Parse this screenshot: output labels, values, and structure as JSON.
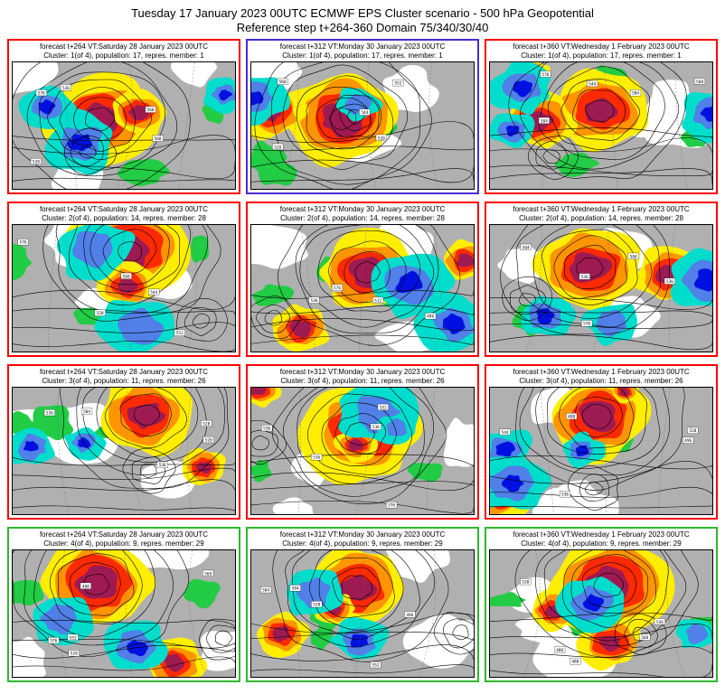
{
  "title": "Tuesday 17 January 2023 00UTC ECMWF EPS Cluster scenario - 500 hPa Geopotential",
  "subtitle": "Reference step t+264-360 Domain 75/340/30/40",
  "base_time": "Tuesday 17 January 2023 00UTC",
  "parameter": "500 hPa Geopotential",
  "reference_step": "t+264-360",
  "domain": "75/340/30/40",
  "colors": {
    "red_border": "#ff0000",
    "blue_border": "#4b2bd6",
    "green_border": "#2eb82e",
    "palette": {
      "gray": "#b0b0b0",
      "yellow": "#ffee00",
      "orange": "#ff9500",
      "red": "#ff2a00",
      "dark_red": "#9e1a52",
      "cyan": "#00ddcc",
      "blue": "#5080e8",
      "dark_blue": "#0010e0",
      "green": "#22cc44",
      "contour": "#000000"
    }
  },
  "panels": [
    {
      "id": "r1c1",
      "line1": "forecast t+264 VT:Saturday 28 January 2023 00UTC",
      "line2": "Cluster: 1(of 4), population: 17, repres. member: 1",
      "border": "red",
      "seed": 7
    },
    {
      "id": "r1c2",
      "line1": "forecast t+312 VT:Monday 30 January 2023 00UTC",
      "line2": "Cluster: 1(of 4), population: 17, repres. member: 1",
      "border": "blue",
      "seed": 23
    },
    {
      "id": "r1c3",
      "line1": "forecast t+360 VT:Wednesday 1 February 2023 00UTC",
      "line2": "Cluster: 1(of 4), population: 17, repres. member: 1",
      "border": "red",
      "seed": 41
    },
    {
      "id": "r2c1",
      "line1": "forecast t+264 VT:Saturday 28 January 2023 00UTC",
      "line2": "Cluster: 2(of 4), population: 14, repres. member: 28",
      "border": "red",
      "seed": 59
    },
    {
      "id": "r2c2",
      "line1": "forecast t+312 VT:Monday 30 January 2023 00UTC",
      "line2": "Cluster: 2(of 4), population: 14, repres. member: 28",
      "border": "red",
      "seed": 73
    },
    {
      "id": "r2c3",
      "line1": "forecast t+360 VT:Wednesday 1 February 2023 00UTC",
      "line2": "Cluster: 2(of 4), population: 14, repres. member: 28",
      "border": "red",
      "seed": 97
    },
    {
      "id": "r3c1",
      "line1": "forecast t+264 VT:Saturday 28 January 2023 00UTC",
      "line2": "Cluster: 3(of 4), population: 11, repres. member: 26",
      "border": "red",
      "seed": 113
    },
    {
      "id": "r3c2",
      "line1": "forecast t+312 VT:Monday 30 January 2023 00UTC",
      "line2": "Cluster: 3(of 4), population: 11, repres. member: 26",
      "border": "red",
      "seed": 131
    },
    {
      "id": "r3c3",
      "line1": "forecast t+360 VT:Wednesday 1 February 2023 00UTC",
      "line2": "Cluster: 3(of 4), population: 11, repres. member: 26",
      "border": "red",
      "seed": 151
    },
    {
      "id": "r4c1",
      "line1": "forecast t+264 VT:Saturday 28 January 2023 00UTC",
      "line2": "Cluster: 4(of 4), population: 9, repres. member: 29",
      "border": "green",
      "seed": 173
    },
    {
      "id": "r4c2",
      "line1": "forecast t+312 VT:Monday 30 January 2023 00UTC",
      "line2": "Cluster: 4(of 4), population: 9, repres. member: 29",
      "border": "green",
      "seed": 193
    },
    {
      "id": "r4c3",
      "line1": "forecast t+360 VT:Wednesday 1 February 2023 00UTC",
      "line2": "Cluster: 4(of 4), population: 9, repres. member: 29",
      "border": "green",
      "seed": 211
    }
  ],
  "chart_data": {
    "type": "heatmap",
    "subtype": "500hPa-geopotential-anomaly-cluster-maps",
    "grid": {
      "rows": 4,
      "cols": 3
    },
    "base_time": "Tuesday 17 January 2023 00UTC",
    "parameter": "500 hPa Geopotential",
    "reference_step": "t+264-360",
    "domain": "75/340/30/40",
    "forecast_steps": [
      {
        "step": "t+264",
        "valid_time": "Saturday 28 January 2023 00UTC"
      },
      {
        "step": "t+312",
        "valid_time": "Monday 30 January 2023 00UTC"
      },
      {
        "step": "t+360",
        "valid_time": "Wednesday 1 February 2023 00UTC"
      }
    ],
    "clusters": [
      {
        "cluster": 1,
        "of": 4,
        "population": 17,
        "repres_member": 1,
        "row_border": "red",
        "note": "panel at t+312 highlighted with blue border"
      },
      {
        "cluster": 2,
        "of": 4,
        "population": 14,
        "repres_member": 28,
        "row_border": "red"
      },
      {
        "cluster": 3,
        "of": 4,
        "population": 11,
        "repres_member": 26,
        "row_border": "red"
      },
      {
        "cluster": 4,
        "of": 4,
        "population": 9,
        "repres_member": 29,
        "row_border": "green"
      }
    ],
    "contour_levels": [
      488,
      496,
      504,
      512,
      520,
      528,
      536,
      544,
      552,
      560,
      568,
      576,
      584
    ],
    "legend_position": "none",
    "grid_lines": "dashed graticule on maps"
  }
}
